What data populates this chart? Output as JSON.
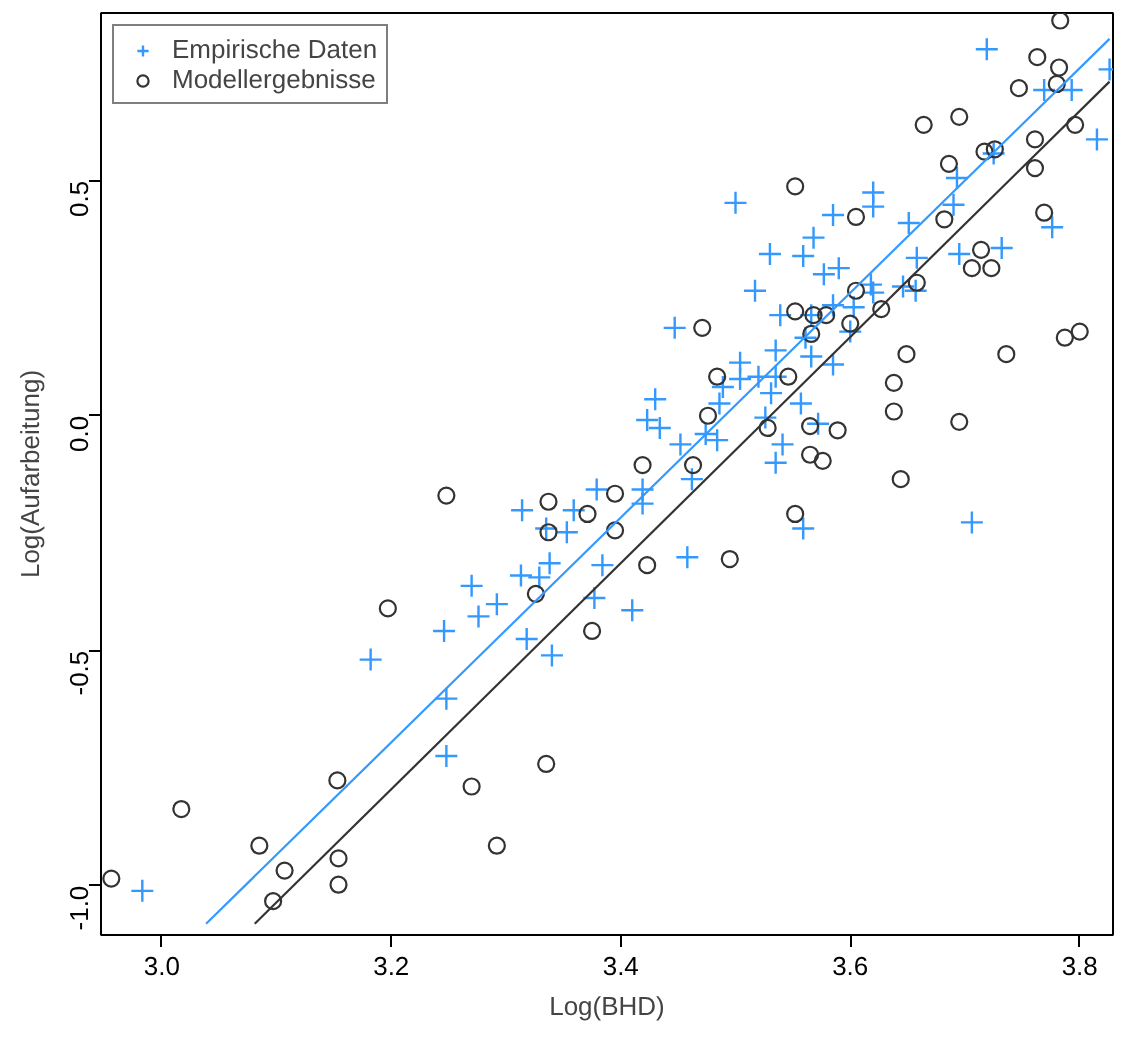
{
  "chart_data": {
    "type": "scatter",
    "xlabel": "Log(BHD)",
    "ylabel": "Log(Aufarbeitung)",
    "xlim": [
      2.947,
      3.829
    ],
    "ylim": [
      -1.105,
      0.857
    ],
    "xticks": [
      {
        "value": 3.0,
        "label": "3.0"
      },
      {
        "value": 3.2,
        "label": "3.2"
      },
      {
        "value": 3.4,
        "label": "3.4"
      },
      {
        "value": 3.6,
        "label": "3.6"
      },
      {
        "value": 3.8,
        "label": "3.8"
      }
    ],
    "yticks": [
      {
        "value": -1.0,
        "label": "-1.0"
      },
      {
        "value": -0.5,
        "label": "-0.5"
      },
      {
        "value": 0.0,
        "label": "0.0"
      },
      {
        "value": 0.5,
        "label": "0.5"
      }
    ],
    "grid": false,
    "legend": "top left",
    "series": [
      {
        "name": "Empirische Daten",
        "color": "#3399ff",
        "marker": "cross",
        "x": [
          2.983,
          3.182,
          3.246,
          3.276,
          3.27,
          3.292,
          3.314,
          3.359,
          3.379,
          3.353,
          3.335,
          3.338,
          3.313,
          3.329,
          3.318,
          3.34,
          3.377,
          3.384,
          3.248,
          3.248,
          3.41,
          3.458,
          3.559,
          3.706,
          3.535,
          3.419,
          3.419,
          3.462,
          3.719,
          3.826,
          3.769,
          3.793,
          3.815,
          3.725,
          3.693,
          3.62,
          3.62,
          3.5,
          3.585,
          3.651,
          3.69,
          3.568,
          3.53,
          3.559,
          3.59,
          3.577,
          3.658,
          3.695,
          3.732,
          3.776,
          3.447,
          3.517,
          3.539,
          3.566,
          3.585,
          3.618,
          3.62,
          3.603,
          3.646,
          3.561,
          3.566,
          3.6,
          3.585,
          3.535,
          3.504,
          3.504,
          3.489,
          3.52,
          3.535,
          3.531,
          3.43,
          3.423,
          3.434,
          3.486,
          3.557,
          3.526,
          3.474,
          3.484,
          3.452,
          3.541,
          3.572,
          3.657
        ],
        "values": [
          -1.011,
          -0.519,
          -0.458,
          -0.427,
          -0.362,
          -0.401,
          -0.201,
          -0.201,
          -0.157,
          -0.248,
          -0.24,
          -0.314,
          -0.34,
          -0.344,
          -0.475,
          -0.51,
          -0.388,
          -0.318,
          -0.602,
          -0.724,
          -0.414,
          -0.301,
          -0.24,
          -0.227,
          -0.1,
          -0.157,
          -0.187,
          -0.135,
          0.78,
          0.737,
          0.693,
          0.693,
          0.588,
          0.558,
          0.506,
          0.475,
          0.445,
          0.453,
          0.427,
          0.41,
          0.449,
          0.379,
          0.344,
          0.34,
          0.314,
          0.301,
          0.336,
          0.344,
          0.357,
          0.401,
          0.187,
          0.266,
          0.214,
          0.214,
          0.235,
          0.279,
          0.262,
          0.231,
          0.275,
          0.166,
          0.126,
          0.179,
          0.109,
          0.139,
          0.113,
          0.078,
          0.061,
          0.083,
          0.083,
          0.048,
          0.035,
          -0.009,
          -0.026,
          0.026,
          0.026,
          -0.004,
          -0.039,
          -0.052,
          -0.061,
          -0.061,
          -0.017,
          0.266
        ]
      },
      {
        "name": "Modellergebnisse",
        "color": "#333333",
        "marker": "circle",
        "x": [
          2.956,
          3.017,
          3.085,
          3.107,
          3.097,
          3.154,
          3.154,
          3.153,
          3.197,
          3.248,
          3.27,
          3.292,
          3.335,
          3.326,
          3.375,
          3.337,
          3.337,
          3.371,
          3.395,
          3.395,
          3.423,
          3.495,
          3.552,
          3.576,
          3.565,
          3.644,
          3.783,
          3.763,
          3.782,
          3.78,
          3.747,
          3.796,
          3.761,
          3.761,
          3.695,
          3.664,
          3.717,
          3.726,
          3.686,
          3.769,
          3.682,
          3.552,
          3.605,
          3.714,
          3.706,
          3.723,
          3.658,
          3.627,
          3.605,
          3.6,
          3.552,
          3.568,
          3.579,
          3.566,
          3.471,
          3.484,
          3.546,
          3.649,
          3.736,
          3.787,
          3.8,
          3.638,
          3.638,
          3.695,
          3.476,
          3.528,
          3.565,
          3.589,
          3.419,
          3.463
        ],
        "values": [
          -0.985,
          -0.837,
          -0.915,
          -0.968,
          -1.033,
          -0.942,
          -0.998,
          -0.776,
          -0.41,
          -0.17,
          -0.789,
          -0.915,
          -0.741,
          -0.379,
          -0.458,
          -0.248,
          -0.183,
          -0.209,
          -0.166,
          -0.244,
          -0.318,
          -0.305,
          -0.209,
          -0.096,
          -0.083,
          -0.135,
          0.841,
          0.763,
          0.741,
          0.706,
          0.697,
          0.619,
          0.588,
          0.527,
          0.636,
          0.619,
          0.562,
          0.567,
          0.536,
          0.432,
          0.418,
          0.488,
          0.423,
          0.353,
          0.314,
          0.314,
          0.283,
          0.227,
          0.266,
          0.196,
          0.222,
          0.214,
          0.214,
          0.174,
          0.187,
          0.083,
          0.083,
          0.131,
          0.131,
          0.166,
          0.179,
          0.07,
          0.009,
          -0.013,
          0.0,
          -0.026,
          -0.022,
          -0.031,
          -0.105,
          -0.105
        ]
      },
      {
        "type": "line",
        "color": "#3399ff",
        "line_style": "solid",
        "x": [
          3.0386,
          3.826
        ],
        "values": [
          -1.081,
          0.802
        ]
      },
      {
        "type": "line",
        "color": "#333333",
        "line_style": "solid",
        "x": [
          3.081,
          3.826
        ],
        "values": [
          -1.081,
          0.711
        ]
      }
    ]
  }
}
